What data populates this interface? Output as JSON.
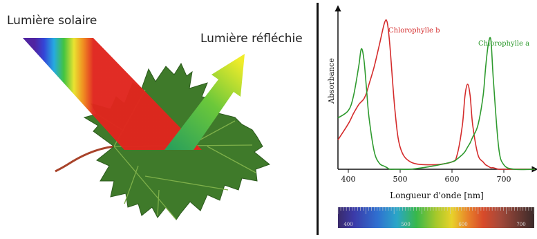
{
  "left_panel": {
    "sunlight_label": "Lumière solaire",
    "reflected_label": "Lumière réfléchie"
  },
  "chart_data": {
    "type": "line",
    "xlabel": "Longueur d'onde [nm]",
    "ylabel": "Absorbance",
    "xlim": [
      380,
      760
    ],
    "ylim": [
      0,
      1.05
    ],
    "x_ticks": [
      "400",
      "500",
      "600",
      "700"
    ],
    "x": [
      380,
      400,
      410,
      420,
      425,
      430,
      435,
      440,
      450,
      460,
      470,
      475,
      480,
      490,
      500,
      520,
      560,
      600,
      610,
      620,
      625,
      630,
      635,
      640,
      650,
      660,
      665,
      670,
      675,
      680,
      690,
      700,
      720,
      760
    ],
    "series": [
      {
        "name": "Chlorophylle b",
        "color": "#d42b2b",
        "values": [
          0.2,
          0.31,
          0.38,
          0.44,
          0.46,
          0.48,
          0.52,
          0.58,
          0.7,
          0.85,
          1.0,
          1.0,
          0.85,
          0.4,
          0.15,
          0.05,
          0.03,
          0.05,
          0.1,
          0.3,
          0.5,
          0.58,
          0.5,
          0.3,
          0.1,
          0.05,
          0.03,
          0.02,
          0.01,
          0.01,
          0.0,
          0.0,
          0.0,
          0.0
        ]
      },
      {
        "name": "Chlorophylle a",
        "color": "#2e9a2e",
        "values": [
          0.35,
          0.4,
          0.5,
          0.7,
          0.82,
          0.75,
          0.55,
          0.35,
          0.12,
          0.04,
          0.02,
          0.01,
          0.0,
          0.0,
          0.0,
          0.0,
          0.02,
          0.05,
          0.07,
          0.1,
          0.12,
          0.15,
          0.18,
          0.22,
          0.3,
          0.5,
          0.7,
          0.85,
          0.88,
          0.6,
          0.15,
          0.03,
          0.0,
          0.0
        ]
      }
    ]
  },
  "spectrum_bar": {
    "ticks": [
      "400",
      "500",
      "600",
      "700"
    ]
  },
  "colors": {
    "chlorophyll_b": "#d42b2b",
    "chlorophyll_a": "#2e9a2e",
    "leaf": "#3f7a2a",
    "leaf_vein": "#7fb04a"
  }
}
